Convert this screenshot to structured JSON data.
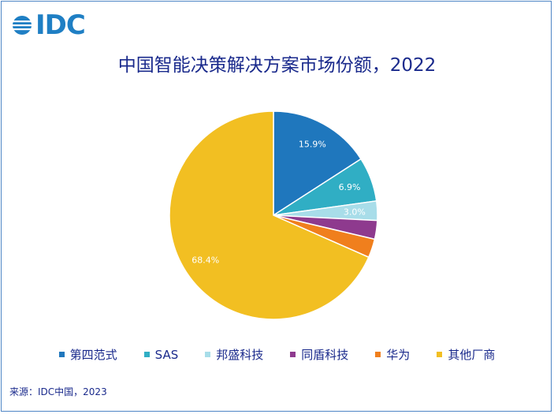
{
  "logo": {
    "text": "IDC"
  },
  "source": "来源：IDC中国，2023",
  "chart_data": {
    "type": "pie",
    "title": "中国智能决策解决方案市场份额，2022",
    "legend_position": "bottom",
    "slices": [
      {
        "name": "第四范式",
        "value": 15.9,
        "label": "15.9%",
        "color": "#1f77bd"
      },
      {
        "name": "SAS",
        "value": 6.9,
        "label": "6.9%",
        "color": "#30aec4"
      },
      {
        "name": "邦盛科技",
        "value": 3.0,
        "label": "3.0%",
        "color": "#a8dde9"
      },
      {
        "name": "同盾科技",
        "value": 2.9,
        "label": "",
        "color": "#8e3a8e"
      },
      {
        "name": "华为",
        "value": 2.9,
        "label": "",
        "color": "#f07f1d"
      },
      {
        "name": "其他厂商",
        "value": 68.4,
        "label": "68.4%",
        "color": "#f2bf22"
      }
    ]
  }
}
